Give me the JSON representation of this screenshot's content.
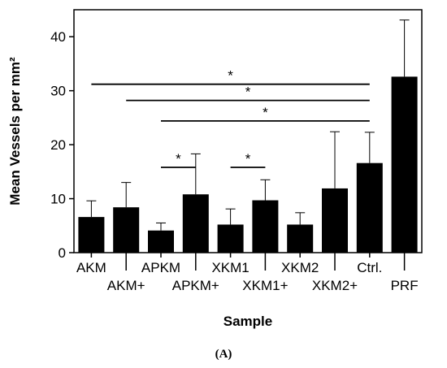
{
  "panel_label": "(A)",
  "chart_data": {
    "type": "bar",
    "xlabel": "Sample",
    "ylabel": "Mean Vessels per mm²",
    "ylim": [
      0,
      45
    ],
    "yticks": [
      0,
      10,
      20,
      30,
      40
    ],
    "grid": false,
    "bar_color": "#000000",
    "categories": [
      "AKM",
      "AKM+",
      "APKM",
      "APKM+",
      "XKM1",
      "XKM1+",
      "XKM2",
      "XKM2+",
      "Ctrl.",
      "PRF"
    ],
    "values": [
      6.6,
      8.4,
      4.1,
      10.8,
      5.2,
      9.7,
      5.2,
      11.9,
      16.6,
      32.6
    ],
    "error_upper": [
      9.6,
      13.0,
      5.5,
      18.3,
      8.1,
      13.5,
      7.4,
      22.4,
      22.3,
      43.1
    ],
    "significance": [
      {
        "from": "AKM",
        "to": "Ctrl.",
        "y": 31.2,
        "label": "*"
      },
      {
        "from": "AKM+",
        "to": "Ctrl.",
        "y": 28.2,
        "label": "*"
      },
      {
        "from": "APKM",
        "to": "Ctrl.",
        "y": 24.4,
        "label": "*"
      },
      {
        "from": "APKM",
        "to": "APKM+",
        "y": 15.8,
        "label": "*"
      },
      {
        "from": "XKM1",
        "to": "XKM1+",
        "y": 15.8,
        "label": "*"
      }
    ]
  }
}
